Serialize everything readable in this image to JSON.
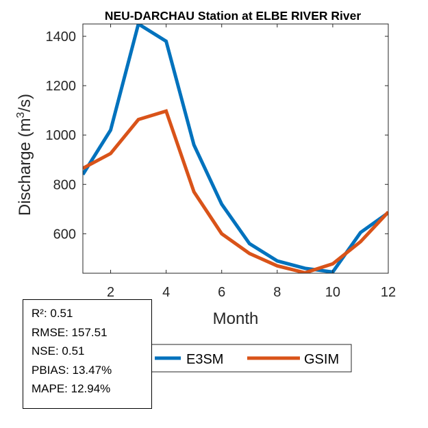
{
  "chart_data": {
    "type": "line",
    "title": "NEU-DARCHAU  Station at  ELBE RIVER  River",
    "xlabel": "Month",
    "ylabel_main": "Discharge (m",
    "ylabel_sup": "3",
    "ylabel_tail": "/s)",
    "xlim": [
      1,
      12
    ],
    "ylim": [
      440,
      1450
    ],
    "xticks": [
      2,
      4,
      6,
      8,
      10,
      12
    ],
    "yticks": [
      600,
      800,
      1000,
      1200,
      1400
    ],
    "grid": false,
    "legend_position": "bottom",
    "x": [
      1,
      2,
      3,
      4,
      5,
      6,
      7,
      8,
      9,
      10,
      11,
      12
    ],
    "series": [
      {
        "name": "E3SM",
        "color": "#0072BD",
        "values": [
          840,
          1020,
          1450,
          1380,
          960,
          720,
          560,
          490,
          460,
          445,
          605,
          685
        ]
      },
      {
        "name": "GSIM",
        "color": "#D95319",
        "values": [
          865,
          925,
          1063,
          1097,
          770,
          600,
          520,
          470,
          442,
          478,
          568,
          688
        ]
      }
    ]
  },
  "stats": {
    "r2": "R²: 0.51",
    "rmse": "RMSE: 157.51",
    "nse": "NSE: 0.51",
    "pbias": "PBIAS: 13.47%",
    "mape": "MAPE: 12.94%"
  }
}
